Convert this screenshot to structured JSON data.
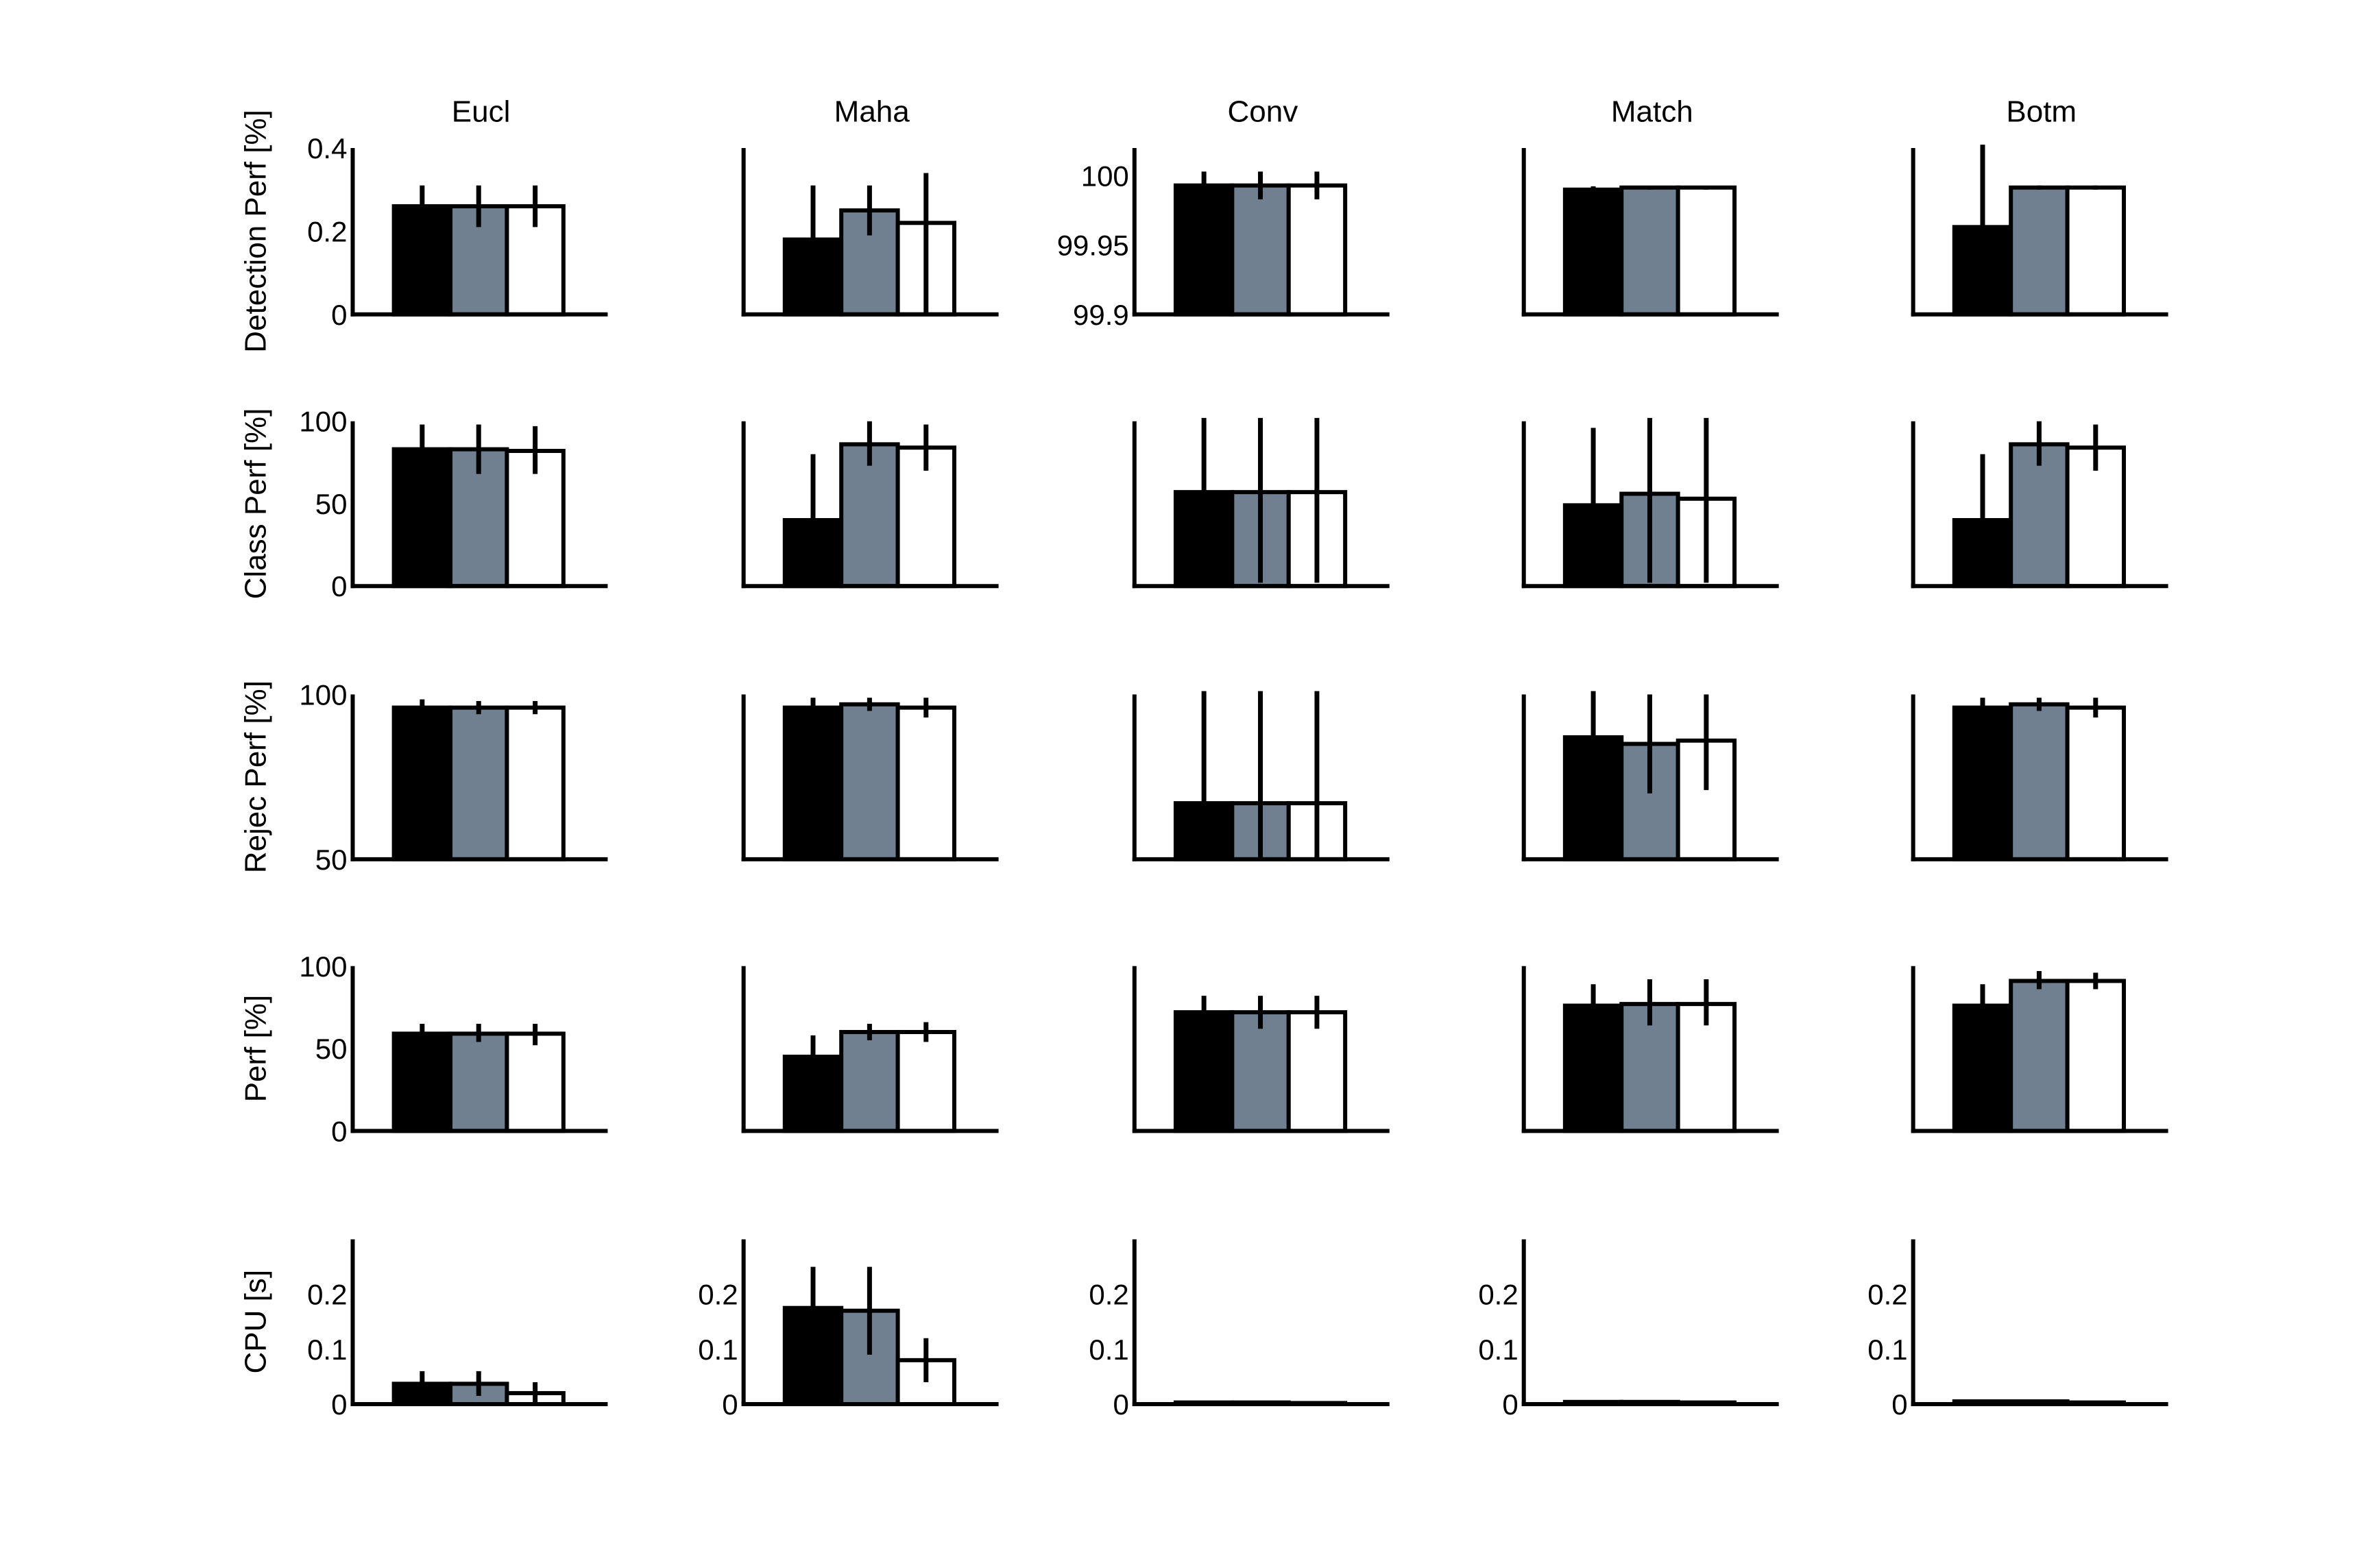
{
  "chart_data": {
    "type": "bar",
    "layout": "small-multiples grid, 5 rows x 5 columns",
    "columns": [
      "Eucl",
      "Maha",
      "Conv",
      "Match",
      "Botm"
    ],
    "rows": [
      {
        "ylabel": "Detection Perf [%]",
        "ytick_columns": [
          0,
          2
        ]
      },
      {
        "ylabel": "Class Perf [%]",
        "ytick_columns": [
          0
        ]
      },
      {
        "ylabel": "Rejec Perf [%]",
        "ytick_columns": [
          0
        ]
      },
      {
        "ylabel": "Perf [%]",
        "ytick_columns": [
          0
        ]
      },
      {
        "ylabel": "CPU [s]",
        "ytick_columns": [
          0,
          1,
          2,
          3,
          4
        ]
      }
    ],
    "bar_colors": [
      "#000000",
      "#708090",
      "#ffffff"
    ],
    "grid": false,
    "legend": "none",
    "panels": [
      [
        {
          "ylim": [
            0,
            0.4
          ],
          "yticks": [
            {
              "v": 0,
              "t": "0"
            },
            {
              "v": 0.2,
              "t": "0.2"
            },
            {
              "v": 0.4,
              "t": "0.4"
            }
          ],
          "values": [
            0.26,
            0.26,
            0.26
          ],
          "errors": [
            [
              0.21,
              0.31
            ],
            [
              0.21,
              0.31
            ],
            [
              0.21,
              0.31
            ]
          ]
        },
        {
          "ylim": [
            0,
            0.4
          ],
          "yticks": [],
          "values": [
            0.18,
            0.25,
            0.22
          ],
          "errors": [
            [
              0.0,
              0.31
            ],
            [
              0.19,
              0.31
            ],
            [
              0.0,
              0.34
            ]
          ]
        },
        {
          "ylim": [
            99.9,
            100.02
          ],
          "yticks": [
            {
              "v": 99.9,
              "t": "99.9"
            },
            {
              "v": 99.95,
              "t": "99.95"
            },
            {
              "v": 100,
              "t": "100"
            }
          ],
          "values": [
            99.993,
            99.993,
            99.993
          ],
          "errors": [
            [
              99.983,
              100.003
            ],
            [
              99.983,
              100.003
            ],
            [
              99.983,
              100.003
            ]
          ]
        },
        {
          "ylim": [
            0,
            0.4
          ],
          "yticks": [],
          "values": [
            0.3,
            0.305,
            0.305
          ],
          "errors": [
            [
              0.298,
              0.308
            ],
            [
              0.3,
              0.308
            ],
            [
              0.3,
              0.308
            ]
          ]
        },
        {
          "ylim": [
            0,
            0.4
          ],
          "yticks": [],
          "values": [
            0.21,
            0.305,
            0.305
          ],
          "errors": [
            [
              0.0,
              0.41
            ],
            [
              0.3,
              0.31
            ],
            [
              0.3,
              0.31
            ]
          ]
        }
      ],
      [
        {
          "ylim": [
            0,
            100
          ],
          "yticks": [
            {
              "v": 0,
              "t": "0"
            },
            {
              "v": 50,
              "t": "50"
            },
            {
              "v": 100,
              "t": "100"
            }
          ],
          "values": [
            83,
            83,
            82
          ],
          "errors": [
            [
              67,
              98
            ],
            [
              68,
              98
            ],
            [
              68,
              97
            ]
          ]
        },
        {
          "ylim": [
            0,
            100
          ],
          "yticks": [],
          "values": [
            40,
            86,
            84
          ],
          "errors": [
            [
              0,
              80
            ],
            [
              73,
              100
            ],
            [
              70,
              98
            ]
          ]
        },
        {
          "ylim": [
            0,
            100
          ],
          "yticks": [],
          "values": [
            57,
            57,
            57
          ],
          "errors": [
            [
              0,
              102
            ],
            [
              2,
              102
            ],
            [
              2,
              102
            ]
          ]
        },
        {
          "ylim": [
            0,
            100
          ],
          "yticks": [],
          "values": [
            49,
            56,
            53
          ],
          "errors": [
            [
              0,
              96
            ],
            [
              2,
              102
            ],
            [
              2,
              102
            ]
          ]
        },
        {
          "ylim": [
            0,
            100
          ],
          "yticks": [],
          "values": [
            40,
            86,
            84
          ],
          "errors": [
            [
              0,
              80
            ],
            [
              73,
              100
            ],
            [
              70,
              98
            ]
          ]
        }
      ],
      [
        {
          "ylim": [
            50,
            100
          ],
          "yticks": [
            {
              "v": 50,
              "t": "50"
            },
            {
              "v": 100,
              "t": "100"
            }
          ],
          "values": [
            96,
            96,
            96
          ],
          "errors": [
            [
              93.5,
              98.5
            ],
            [
              94,
              98
            ],
            [
              94,
              98
            ]
          ]
        },
        {
          "ylim": [
            50,
            100
          ],
          "yticks": [],
          "values": [
            96,
            97,
            96
          ],
          "errors": [
            [
              93,
              99
            ],
            [
              95,
              99
            ],
            [
              93,
              99
            ]
          ]
        },
        {
          "ylim": [
            50,
            100
          ],
          "yticks": [],
          "values": [
            67,
            67,
            67
          ],
          "errors": [
            [
              50,
              103
            ],
            [
              50,
              103
            ],
            [
              50,
              103
            ]
          ]
        },
        {
          "ylim": [
            50,
            100
          ],
          "yticks": [],
          "values": [
            87,
            85,
            86
          ],
          "errors": [
            [
              73,
              101
            ],
            [
              70,
              100
            ],
            [
              71,
              100
            ]
          ]
        },
        {
          "ylim": [
            50,
            100
          ],
          "yticks": [],
          "values": [
            96,
            97,
            96
          ],
          "errors": [
            [
              93,
              99
            ],
            [
              95,
              99
            ],
            [
              93,
              99
            ]
          ]
        }
      ],
      [
        {
          "ylim": [
            0,
            100
          ],
          "yticks": [
            {
              "v": 0,
              "t": "0"
            },
            {
              "v": 50,
              "t": "50"
            },
            {
              "v": 100,
              "t": "100"
            }
          ],
          "values": [
            59,
            59,
            59
          ],
          "errors": [
            [
              54,
              65
            ],
            [
              54,
              65
            ],
            [
              52,
              65
            ]
          ]
        },
        {
          "ylim": [
            0,
            100
          ],
          "yticks": [],
          "values": [
            45,
            60,
            60
          ],
          "errors": [
            [
              32,
              58
            ],
            [
              55,
              65
            ],
            [
              54,
              66
            ]
          ]
        },
        {
          "ylim": [
            0,
            100
          ],
          "yticks": [],
          "values": [
            72,
            72,
            72
          ],
          "errors": [
            [
              63,
              82
            ],
            [
              62,
              82
            ],
            [
              62,
              82
            ]
          ]
        },
        {
          "ylim": [
            0,
            100
          ],
          "yticks": [],
          "values": [
            76,
            77,
            77
          ],
          "errors": [
            [
              64,
              89
            ],
            [
              64,
              92
            ],
            [
              64,
              92
            ]
          ]
        },
        {
          "ylim": [
            0,
            100
          ],
          "yticks": [],
          "values": [
            76,
            91,
            91
          ],
          "errors": [
            [
              64,
              89
            ],
            [
              86,
              97
            ],
            [
              86,
              96
            ]
          ]
        }
      ],
      [
        {
          "ylim": [
            0,
            0.3
          ],
          "yticks": [
            {
              "v": 0,
              "t": "0"
            },
            {
              "v": 0.1,
              "t": "0.1"
            },
            {
              "v": 0.2,
              "t": "0.2"
            }
          ],
          "values": [
            0.037,
            0.037,
            0.02
          ],
          "errors": [
            [
              0.015,
              0.06
            ],
            [
              0.015,
              0.06
            ],
            [
              0.0,
              0.04
            ]
          ]
        },
        {
          "ylim": [
            0,
            0.3
          ],
          "yticks": [
            {
              "v": 0,
              "t": "0"
            },
            {
              "v": 0.1,
              "t": "0.1"
            },
            {
              "v": 0.2,
              "t": "0.2"
            }
          ],
          "values": [
            0.175,
            0.17,
            0.08
          ],
          "errors": [
            [
              0.1,
              0.25
            ],
            [
              0.09,
              0.25
            ],
            [
              0.04,
              0.12
            ]
          ]
        },
        {
          "ylim": [
            0,
            0.3
          ],
          "yticks": [
            {
              "v": 0,
              "t": "0"
            },
            {
              "v": 0.1,
              "t": "0.1"
            },
            {
              "v": 0.2,
              "t": "0.2"
            }
          ],
          "values": [
            0.003,
            0.003,
            0.002
          ],
          "errors": [
            [
              0.002,
              0.004
            ],
            [
              0.002,
              0.004
            ],
            [
              0.001,
              0.003
            ]
          ]
        },
        {
          "ylim": [
            0,
            0.3
          ],
          "yticks": [
            {
              "v": 0,
              "t": "0"
            },
            {
              "v": 0.1,
              "t": "0.1"
            },
            {
              "v": 0.2,
              "t": "0.2"
            }
          ],
          "values": [
            0.004,
            0.004,
            0.003
          ],
          "errors": [
            [
              0.003,
              0.005
            ],
            [
              0.003,
              0.005
            ],
            [
              0.002,
              0.004
            ]
          ]
        },
        {
          "ylim": [
            0,
            0.3
          ],
          "yticks": [
            {
              "v": 0,
              "t": "0"
            },
            {
              "v": 0.1,
              "t": "0.1"
            },
            {
              "v": 0.2,
              "t": "0.2"
            }
          ],
          "values": [
            0.005,
            0.005,
            0.003
          ],
          "errors": [
            [
              0.004,
              0.006
            ],
            [
              0.004,
              0.006
            ],
            [
              0.002,
              0.004
            ]
          ]
        }
      ]
    ]
  }
}
